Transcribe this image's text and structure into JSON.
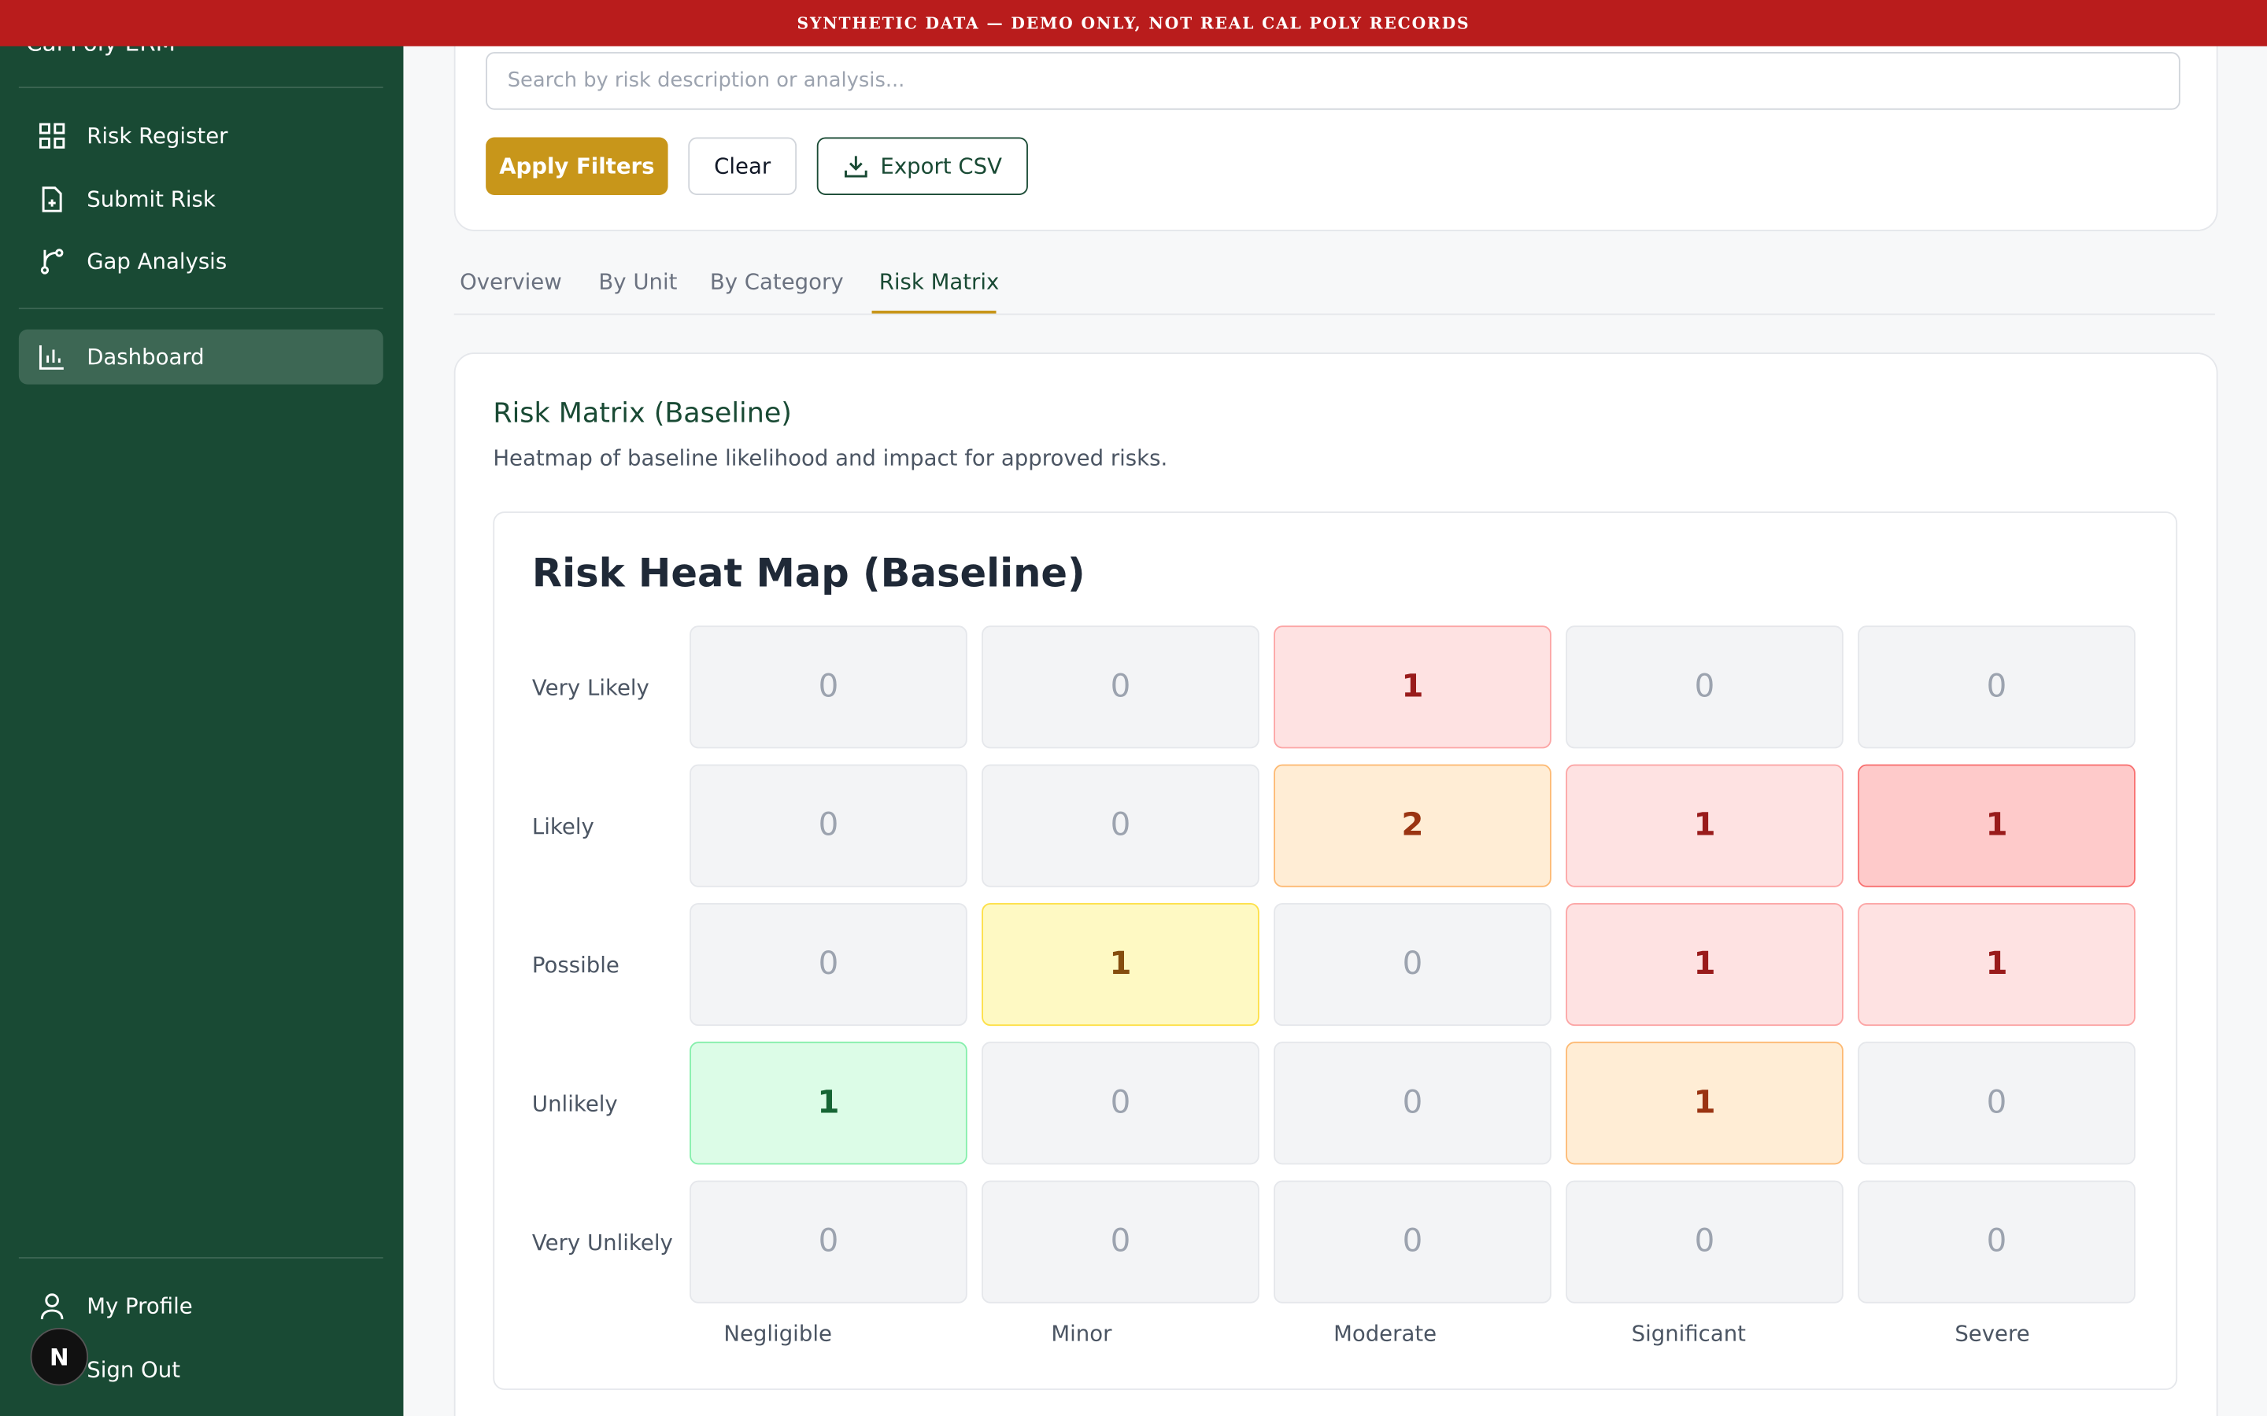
{
  "banner": "SYNTHETIC DATA — DEMO ONLY, NOT REAL CAL POLY RECORDS",
  "sidebar": {
    "brand": "Cal Poly ERM",
    "nav": [
      "Risk Register",
      "Submit Risk",
      "Gap Analysis",
      "Dashboard"
    ],
    "footer": [
      "My Profile",
      "Sign Out"
    ],
    "avatar": "N"
  },
  "filters": {
    "search_placeholder": "Search by risk description or analysis...",
    "buttons": [
      "Apply Filters",
      "Clear",
      "Export CSV"
    ]
  },
  "tabs": [
    "Overview",
    "By Unit",
    "By Category",
    "Risk Matrix"
  ],
  "panel": {
    "title": "Risk Matrix (Baseline)",
    "subtitle": "Heatmap of baseline likelihood and impact for approved risks.",
    "heatmap": {
      "title": "Risk Heat Map (Baseline)",
      "rows": [
        "Very Likely",
        "Likely",
        "Possible",
        "Unlikely",
        "Very Unlikely"
      ],
      "columns": [
        "Negligible",
        "Minor",
        "Moderate",
        "Significant",
        "Severe"
      ],
      "values": [
        [
          0,
          0,
          1,
          0,
          0
        ],
        [
          0,
          0,
          2,
          1,
          1
        ],
        [
          0,
          1,
          0,
          1,
          1
        ],
        [
          1,
          0,
          0,
          1,
          0
        ],
        [
          0,
          0,
          0,
          0,
          0
        ]
      ]
    }
  }
}
